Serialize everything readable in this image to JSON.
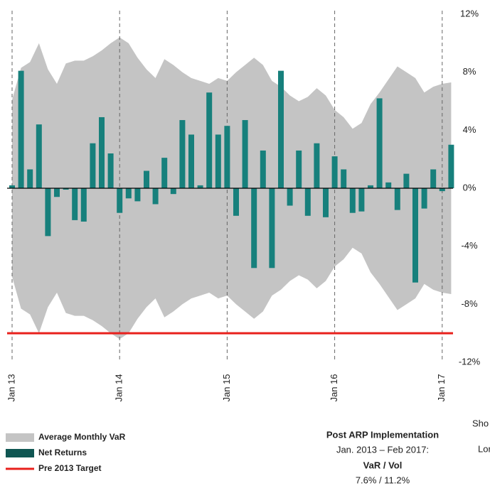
{
  "chart_data": {
    "type": "bar",
    "categories": [
      "Jan 13",
      null,
      null,
      null,
      null,
      null,
      null,
      null,
      null,
      null,
      null,
      null,
      "Jan 14",
      null,
      null,
      null,
      null,
      null,
      null,
      null,
      null,
      null,
      null,
      null,
      "Jan 15",
      null,
      null,
      null,
      null,
      null,
      null,
      null,
      null,
      null,
      null,
      null,
      "Jan 16",
      null,
      null,
      null,
      null,
      null,
      null,
      null,
      null,
      null,
      null,
      null,
      "Jan 17",
      null
    ],
    "series": [
      {
        "name": "Average Monthly VaR",
        "color": "#c4c4c4",
        "values": [
          6.1,
          8.3,
          8.7,
          10.0,
          8.2,
          7.2,
          8.6,
          8.8,
          8.8,
          9.1,
          9.5,
          10.0,
          10.4,
          10.0,
          9.0,
          8.2,
          7.6,
          8.9,
          8.5,
          8.0,
          7.6,
          7.4,
          7.2,
          7.6,
          7.4,
          8.0,
          8.5,
          9.0,
          8.5,
          7.4,
          7.0,
          6.4,
          6.0,
          6.3,
          6.9,
          6.4,
          5.4,
          4.9,
          4.1,
          4.5,
          5.8,
          6.6,
          7.5,
          8.4,
          8.0,
          7.6,
          6.6,
          7.0,
          7.2,
          7.3
        ]
      },
      {
        "name": "Net Returns",
        "color": "#17807c",
        "values": [
          0.2,
          8.1,
          1.3,
          4.4,
          -3.3,
          -0.6,
          -0.1,
          -2.2,
          -2.3,
          3.1,
          4.9,
          2.4,
          -1.7,
          -0.7,
          -0.9,
          1.2,
          -1.1,
          2.1,
          -0.4,
          4.7,
          3.7,
          0.2,
          6.6,
          3.7,
          4.3,
          -1.9,
          4.7,
          -5.5,
          2.6,
          -5.5,
          8.1,
          -1.2,
          2.6,
          -1.9,
          3.1,
          -2.0,
          2.2,
          1.3,
          -1.7,
          -1.6,
          0.2,
          6.2,
          0.4,
          -1.5,
          1.0,
          -6.5,
          -1.4,
          1.3,
          -0.2,
          3.0
        ]
      }
    ],
    "target": {
      "name": "Pre 2013 Target",
      "value": -10,
      "color": "#e8201c"
    },
    "ylim": [
      -12,
      12
    ],
    "yticks": [
      {
        "value": 12,
        "label": "12%"
      },
      {
        "value": 8,
        "label": "8%"
      },
      {
        "value": 4,
        "label": "4%"
      },
      {
        "value": 0,
        "label": "0%"
      },
      {
        "value": -4,
        "label": "-4%"
      },
      {
        "value": -8,
        "label": "-8%"
      },
      {
        "value": -12,
        "label": "-12%"
      }
    ],
    "annotations": [
      "Sho",
      "Lor"
    ],
    "summary": {
      "title": "Post ARP Implementation",
      "period": "Jan. 2013 –  Feb 2017:",
      "header": "VaR  /  Vol",
      "values": "7.6%  /  11.2%"
    }
  }
}
